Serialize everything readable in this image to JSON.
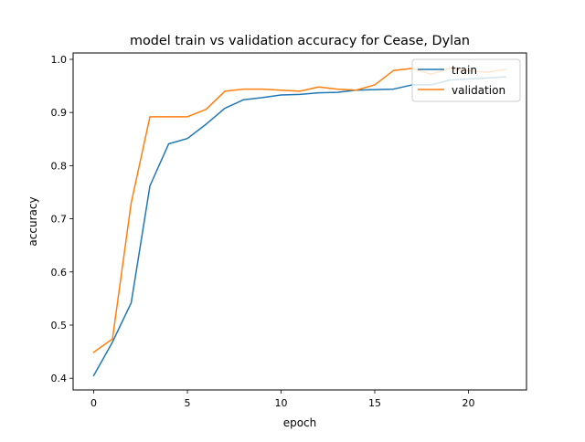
{
  "chart_data": {
    "type": "line",
    "title": "model train vs validation accuracy for Cease, Dylan",
    "xlabel": "epoch",
    "ylabel": "accuracy",
    "xlim": [
      -1.1,
      23.1
    ],
    "ylim": [
      0.378,
      1.012
    ],
    "xticks": [
      0,
      5,
      10,
      15,
      20
    ],
    "yticks": [
      0.4,
      0.5,
      0.6,
      0.7,
      0.8,
      0.9,
      1.0
    ],
    "xtick_labels": [
      "0",
      "5",
      "10",
      "15",
      "20"
    ],
    "ytick_labels": [
      "0.4",
      "0.5",
      "0.6",
      "0.7",
      "0.8",
      "0.9",
      "1.0"
    ],
    "grid": false,
    "legend_position": "top-right",
    "x": [
      0,
      1,
      2,
      3,
      4,
      5,
      6,
      7,
      8,
      9,
      10,
      11,
      12,
      13,
      14,
      15,
      16,
      17,
      18,
      19,
      20,
      21,
      22
    ],
    "series": [
      {
        "name": "train",
        "color": "#1f77b4",
        "values": [
          0.405,
          0.468,
          0.542,
          0.762,
          0.841,
          0.851,
          0.878,
          0.908,
          0.924,
          0.928,
          0.933,
          0.934,
          0.937,
          0.938,
          0.942,
          0.943,
          0.944,
          0.952,
          0.952,
          0.961,
          0.963,
          0.965,
          0.967
        ]
      },
      {
        "name": "validation",
        "color": "#ff7f0e",
        "values": [
          0.449,
          0.474,
          0.73,
          0.892,
          0.892,
          0.892,
          0.906,
          0.94,
          0.944,
          0.944,
          0.942,
          0.94,
          0.948,
          0.944,
          0.942,
          0.952,
          0.979,
          0.983,
          0.972,
          0.983,
          0.978,
          0.976,
          0.981
        ]
      }
    ]
  }
}
